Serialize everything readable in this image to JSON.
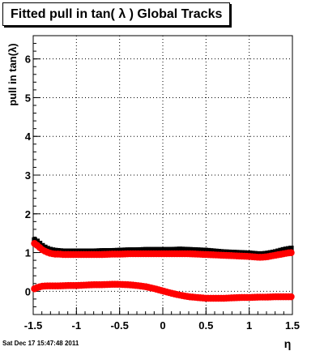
{
  "title": "Fitted pull in tan( λ )  Global Tracks",
  "timestamp": "Sat Dec 17 15:47:48 2011",
  "colors": {
    "series_upper": "#000000",
    "series_upper_overlay": "#ff0000",
    "series_lower": "#ff0000",
    "grid": "#000000",
    "frame": "#000000"
  },
  "chart_data": {
    "type": "scatter",
    "title": "Fitted pull in tan( λ )  Global Tracks",
    "xlabel": "η",
    "ylabel": "pull in tan(λ)",
    "xlim": [
      -1.5,
      1.5
    ],
    "ylim": [
      -0.6,
      6.6
    ],
    "grid": true,
    "x_ticks": [
      -1.5,
      -1,
      -0.5,
      0,
      0.5,
      1,
      1.5
    ],
    "x_tick_labels": [
      "-1.5",
      "-1",
      "-0.5",
      "0",
      "0.5",
      "1",
      "1.5"
    ],
    "y_ticks": [
      0,
      1,
      2,
      3,
      4,
      5,
      6
    ],
    "y_tick_labels": [
      "0",
      "1",
      "2",
      "3",
      "4",
      "5",
      "6"
    ],
    "series": [
      {
        "role": "sigma-black",
        "color": "#000000",
        "points": [
          [
            -1.5,
            1.33
          ],
          [
            -1.45,
            1.27
          ],
          [
            -1.4,
            1.17
          ],
          [
            -1.35,
            1.1
          ],
          [
            -1.3,
            1.06
          ],
          [
            -1.25,
            1.04
          ],
          [
            -1.2,
            1.03
          ],
          [
            -1.15,
            1.02
          ],
          [
            -1.1,
            1.02
          ],
          [
            -1.05,
            1.02
          ],
          [
            -1.0,
            1.02
          ],
          [
            -0.9,
            1.02
          ],
          [
            -0.8,
            1.02
          ],
          [
            -0.7,
            1.03
          ],
          [
            -0.6,
            1.03
          ],
          [
            -0.5,
            1.04
          ],
          [
            -0.4,
            1.05
          ],
          [
            -0.3,
            1.05
          ],
          [
            -0.2,
            1.06
          ],
          [
            -0.1,
            1.06
          ],
          [
            0.0,
            1.06
          ],
          [
            0.1,
            1.06
          ],
          [
            0.2,
            1.07
          ],
          [
            0.3,
            1.06
          ],
          [
            0.4,
            1.05
          ],
          [
            0.5,
            1.04
          ],
          [
            0.6,
            1.02
          ],
          [
            0.7,
            1.0
          ],
          [
            0.8,
            0.99
          ],
          [
            0.9,
            0.98
          ],
          [
            1.0,
            0.97
          ],
          [
            1.05,
            0.96
          ],
          [
            1.1,
            0.95
          ],
          [
            1.15,
            0.95
          ],
          [
            1.2,
            0.96
          ],
          [
            1.25,
            0.98
          ],
          [
            1.3,
            1.0
          ],
          [
            1.35,
            1.03
          ],
          [
            1.4,
            1.06
          ],
          [
            1.45,
            1.08
          ],
          [
            1.5,
            1.1
          ]
        ]
      },
      {
        "role": "sigma-red",
        "color": "#ff0000",
        "points": [
          [
            -1.5,
            1.26
          ],
          [
            -1.45,
            1.18
          ],
          [
            -1.4,
            1.08
          ],
          [
            -1.35,
            1.02
          ],
          [
            -1.3,
            0.98
          ],
          [
            -1.25,
            0.96
          ],
          [
            -1.2,
            0.96
          ],
          [
            -1.15,
            0.95
          ],
          [
            -1.1,
            0.95
          ],
          [
            -1.05,
            0.95
          ],
          [
            -1.0,
            0.95
          ],
          [
            -0.9,
            0.95
          ],
          [
            -0.8,
            0.95
          ],
          [
            -0.7,
            0.95
          ],
          [
            -0.6,
            0.96
          ],
          [
            -0.5,
            0.96
          ],
          [
            -0.4,
            0.97
          ],
          [
            -0.3,
            0.97
          ],
          [
            -0.2,
            0.97
          ],
          [
            -0.1,
            0.97
          ],
          [
            0.0,
            0.97
          ],
          [
            0.1,
            0.97
          ],
          [
            0.2,
            0.97
          ],
          [
            0.3,
            0.97
          ],
          [
            0.4,
            0.96
          ],
          [
            0.5,
            0.95
          ],
          [
            0.6,
            0.94
          ],
          [
            0.7,
            0.93
          ],
          [
            0.8,
            0.92
          ],
          [
            0.9,
            0.91
          ],
          [
            1.0,
            0.9
          ],
          [
            1.05,
            0.89
          ],
          [
            1.1,
            0.88
          ],
          [
            1.15,
            0.88
          ],
          [
            1.2,
            0.89
          ],
          [
            1.25,
            0.91
          ],
          [
            1.3,
            0.93
          ],
          [
            1.35,
            0.95
          ],
          [
            1.4,
            0.97
          ],
          [
            1.45,
            0.99
          ],
          [
            1.5,
            1.0
          ]
        ]
      },
      {
        "role": "mean-red",
        "color": "#ff0000",
        "points": [
          [
            -1.5,
            0.05
          ],
          [
            -1.45,
            0.1
          ],
          [
            -1.4,
            0.13
          ],
          [
            -1.35,
            0.14
          ],
          [
            -1.3,
            0.14
          ],
          [
            -1.25,
            0.14
          ],
          [
            -1.2,
            0.14
          ],
          [
            -1.1,
            0.15
          ],
          [
            -1.0,
            0.15
          ],
          [
            -0.9,
            0.16
          ],
          [
            -0.8,
            0.17
          ],
          [
            -0.7,
            0.17
          ],
          [
            -0.6,
            0.18
          ],
          [
            -0.5,
            0.18
          ],
          [
            -0.4,
            0.17
          ],
          [
            -0.3,
            0.15
          ],
          [
            -0.2,
            0.12
          ],
          [
            -0.1,
            0.07
          ],
          [
            0.0,
            0.01
          ],
          [
            0.1,
            -0.05
          ],
          [
            0.2,
            -0.1
          ],
          [
            0.3,
            -0.14
          ],
          [
            0.4,
            -0.16
          ],
          [
            0.5,
            -0.18
          ],
          [
            0.6,
            -0.18
          ],
          [
            0.7,
            -0.18
          ],
          [
            0.8,
            -0.17
          ],
          [
            0.9,
            -0.16
          ],
          [
            1.0,
            -0.16
          ],
          [
            1.1,
            -0.15
          ],
          [
            1.2,
            -0.15
          ],
          [
            1.3,
            -0.14
          ],
          [
            1.4,
            -0.14
          ],
          [
            1.5,
            -0.14
          ]
        ]
      }
    ]
  }
}
